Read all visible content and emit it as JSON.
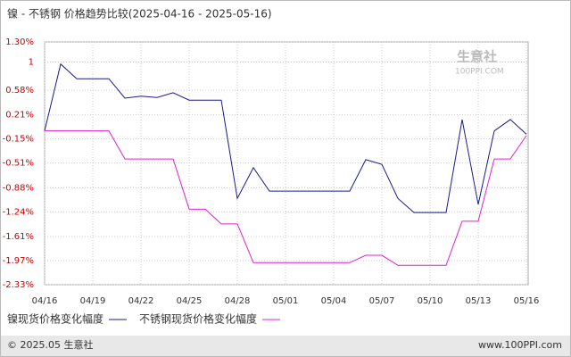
{
  "chart_data": {
    "type": "line",
    "title": "镍 - 不锈钢 价格趋势比较(2025-04-16 - 2025-05-16)",
    "categories": [
      "04/16",
      null,
      null,
      "04/19",
      null,
      null,
      "04/22",
      null,
      null,
      "04/25",
      null,
      null,
      "04/28",
      null,
      null,
      "05/01",
      null,
      null,
      "05/04",
      null,
      null,
      "05/07",
      null,
      null,
      "05/10",
      null,
      null,
      "05/13",
      null,
      null,
      "05/16"
    ],
    "series": [
      {
        "name": "镍现货价格变化幅度",
        "color": "#1a1a8c",
        "values": [
          -0.03,
          0.97,
          0.75,
          0.75,
          0.75,
          0.46,
          0.49,
          0.47,
          0.54,
          0.43,
          0.43,
          0.43,
          -1.04,
          -0.58,
          -0.93,
          -0.93,
          -0.93,
          -0.93,
          -0.93,
          -0.93,
          -0.46,
          -0.53,
          -1.04,
          -1.25,
          -1.25,
          -1.25,
          0.14,
          -1.13,
          -0.03,
          0.14,
          -0.08
        ]
      },
      {
        "name": "不锈钢现货价格变化幅度",
        "color": "#e020d0",
        "values": [
          -0.03,
          -0.03,
          -0.03,
          -0.03,
          -0.03,
          -0.45,
          -0.45,
          -0.45,
          -0.45,
          -1.2,
          -1.2,
          -1.42,
          -1.42,
          -2.0,
          -2.0,
          -2.0,
          -2.0,
          -2.0,
          -2.0,
          -2.0,
          -1.89,
          -1.89,
          -2.04,
          -2.04,
          -2.04,
          -2.04,
          -1.38,
          -1.38,
          -0.45,
          -0.45,
          -0.1
        ]
      }
    ],
    "ylim": [
      -2.33,
      1.3
    ],
    "yticks": [
      {
        "value": 1.3,
        "label": "1.30%"
      },
      1,
      {
        "value": 0.58,
        "label": "0.58%"
      },
      {
        "value": 0.21,
        "label": "0.21%"
      },
      {
        "value": -0.15,
        "label": "-0.15%"
      },
      {
        "value": -0.51,
        "label": "-0.51%"
      },
      {
        "value": -0.88,
        "label": "-0.88%"
      },
      {
        "value": -1.24,
        "label": "-1.24%"
      },
      {
        "value": -1.61,
        "label": "-1.61%"
      },
      {
        "value": -1.97,
        "label": "-1.97%"
      },
      {
        "value": -2.33,
        "label": "-2.33%"
      }
    ],
    "grid": true,
    "watermark": [
      "生意社",
      "100PPI.COM"
    ],
    "footer": {
      "left": "© 2025.05 生意社",
      "right": "www.100PPI.com"
    }
  }
}
